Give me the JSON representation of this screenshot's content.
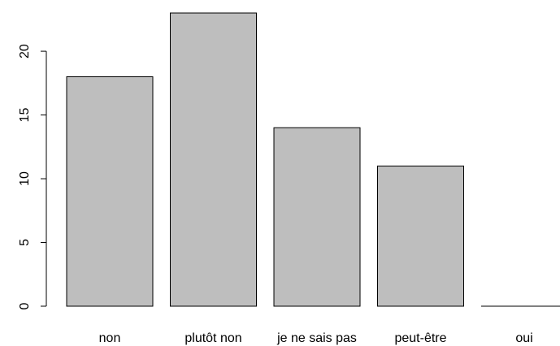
{
  "chart_data": {
    "type": "bar",
    "categories": [
      "non",
      "plutôt non",
      "je ne sais pas",
      "peut-être",
      "oui"
    ],
    "values": [
      18,
      23,
      14,
      11,
      0
    ],
    "color": "#bebebe",
    "ylim": [
      0,
      23
    ],
    "yticks": [
      0,
      5,
      10,
      15,
      20
    ],
    "grid": false
  }
}
